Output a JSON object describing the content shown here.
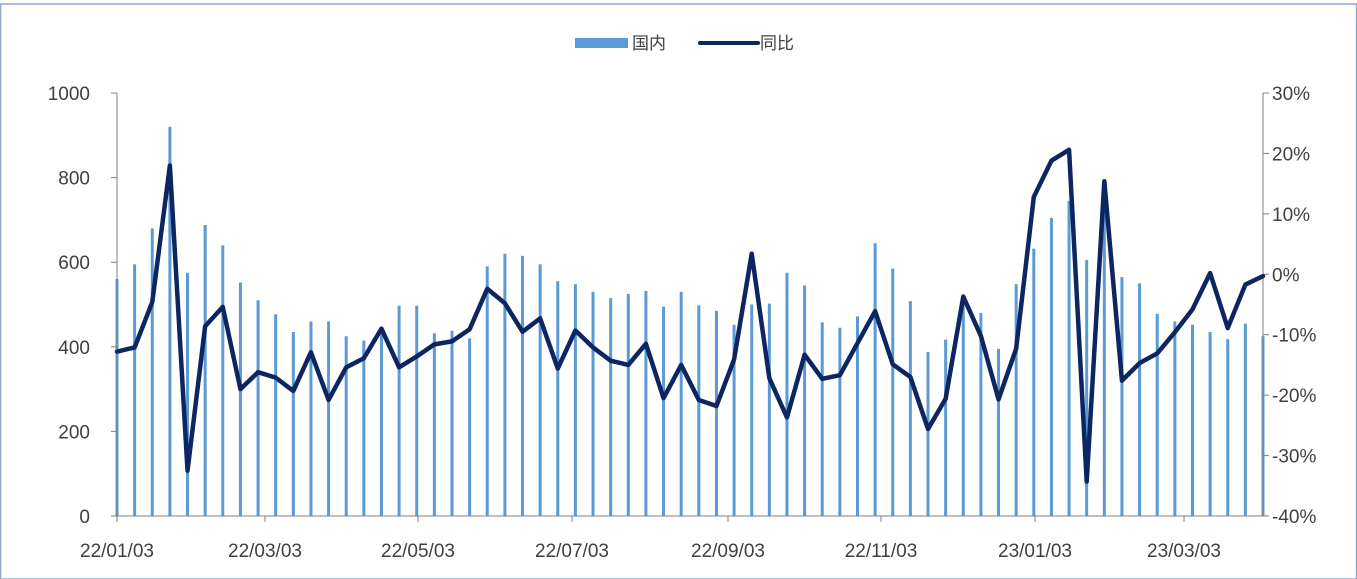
{
  "legend": {
    "bar_label": "国内",
    "line_label": "同比"
  },
  "colors": {
    "bar": "#5b9bd5",
    "line": "#0d2560",
    "axis": "#808080",
    "text": "#404040",
    "frame": "#8fa8c8"
  },
  "chart_data": {
    "type": "bar+line",
    "x_tick_labels": [
      "22/01/03",
      "22/03/03",
      "22/05/03",
      "22/07/03",
      "22/09/03",
      "22/11/03",
      "23/01/03",
      "23/03/03"
    ],
    "y_left": {
      "min": 0,
      "max": 1000,
      "ticks": [
        0,
        200,
        400,
        600,
        800,
        1000
      ]
    },
    "y_right": {
      "min": -40,
      "max": 30,
      "ticks": [
        "-40%",
        "-30%",
        "-20%",
        "-10%",
        "0%",
        "10%",
        "20%",
        "30%"
      ]
    },
    "legend_position": "top",
    "series": [
      {
        "name": "国内",
        "type": "bar",
        "axis": "left",
        "values": [
          560,
          595,
          680,
          920,
          575,
          688,
          640,
          552,
          510,
          477,
          435,
          460,
          460,
          425,
          415,
          440,
          497,
          497,
          432,
          438,
          420,
          590,
          620,
          615,
          595,
          555,
          548,
          530,
          515,
          525,
          532,
          495,
          530,
          498,
          485,
          452,
          500,
          502,
          575,
          545,
          458,
          445,
          472,
          645,
          585,
          508,
          388,
          417,
          505,
          480,
          395,
          548,
          632,
          705,
          745,
          605,
          780,
          565,
          550,
          478,
          460,
          452,
          435,
          418,
          455,
          425
        ]
      },
      {
        "name": "同比",
        "type": "line",
        "axis": "right",
        "values": [
          -12.8,
          -12.1,
          -4.6,
          18.0,
          -32.5,
          -8.6,
          -5.4,
          -19.0,
          -16.2,
          -17.1,
          -19.3,
          -12.9,
          -20.8,
          -15.4,
          -13.9,
          -9.0,
          -15.4,
          -13.6,
          -11.6,
          -11.1,
          -9.1,
          -2.4,
          -4.8,
          -9.5,
          -7.3,
          -15.6,
          -9.3,
          -12.1,
          -14.3,
          -15.0,
          -11.5,
          -20.5,
          -15.0,
          -20.8,
          -21.8,
          -14.1,
          3.4,
          -17.2,
          -23.7,
          -13.3,
          -17.3,
          -16.7,
          -11.4,
          -6.1,
          -14.9,
          -17.0,
          -25.6,
          -20.6,
          -3.7,
          -10.2,
          -20.7,
          -12.3,
          12.8,
          18.8,
          20.6,
          -34.3,
          15.4,
          -17.6,
          -14.7,
          -13.1,
          -9.6,
          -5.8,
          0.2,
          -8.9,
          -1.7,
          -0.3
        ]
      }
    ]
  }
}
